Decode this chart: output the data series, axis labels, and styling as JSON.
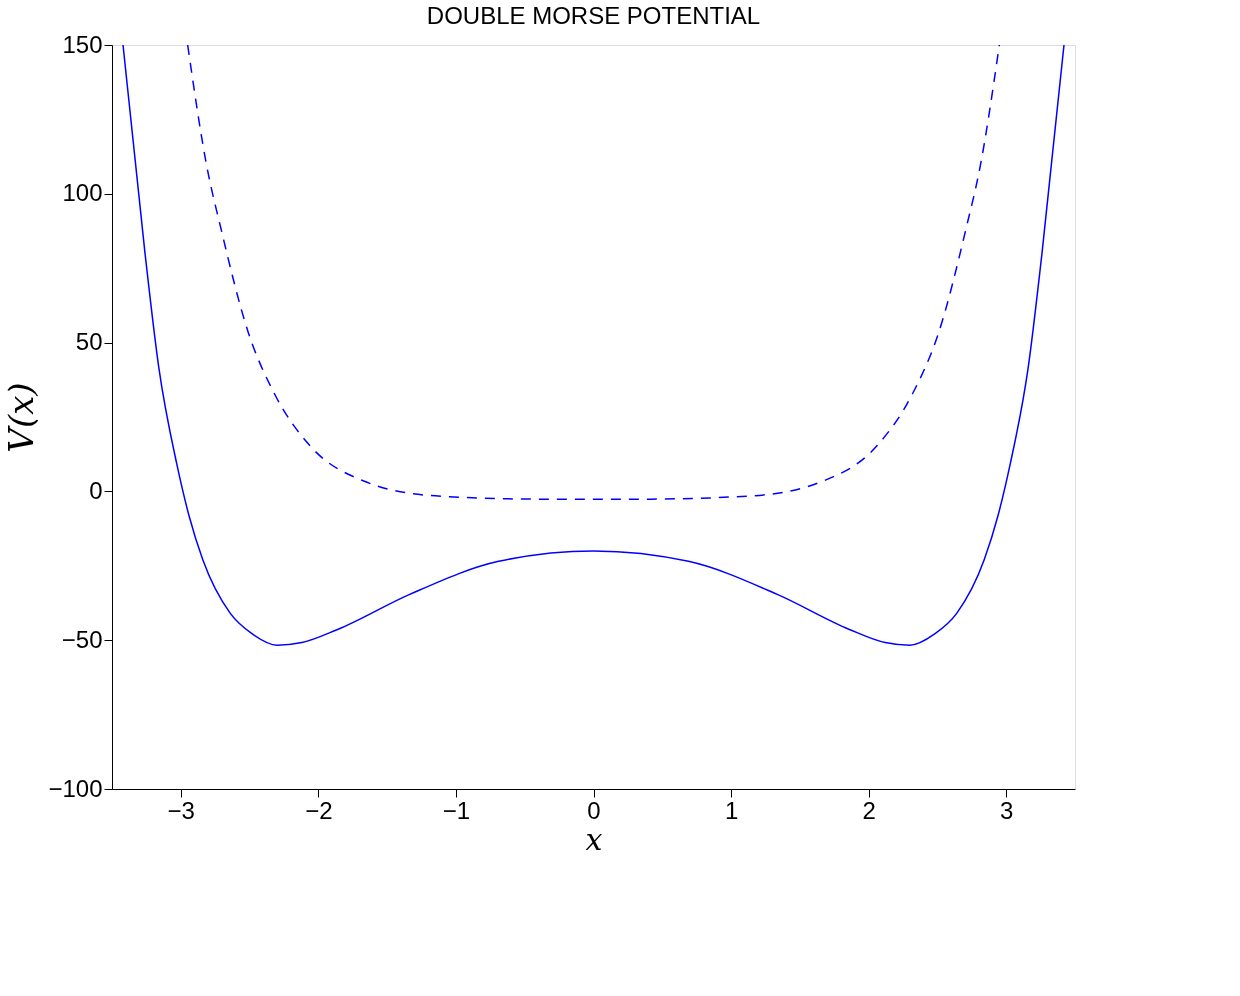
{
  "chart_data": {
    "type": "line",
    "title": "DOUBLE MORSE POTENTIAL",
    "xlabel": "x",
    "ylabel": "V(x)",
    "xlim": [
      -3.5,
      3.5
    ],
    "xticks": [
      -3,
      -2,
      -1,
      0,
      1,
      2,
      3
    ],
    "ylim": [
      -100,
      150
    ],
    "yticks": [
      -100,
      -50,
      0,
      50,
      100,
      150
    ],
    "grid": false,
    "marker": "none",
    "series": [
      {
        "color": "#0000ff",
        "line_style": "solid",
        "x": [
          -3.42,
          -3.26,
          -3.16,
          -3.03,
          -2.94,
          -2.84,
          -2.64,
          -2.48,
          -2.3,
          -2.12,
          -1.86,
          -1.34,
          -0.69,
          0,
          0.69,
          1.34,
          1.86,
          2.12,
          2.3,
          2.48,
          2.64,
          2.84,
          2.94,
          3.03,
          3.16,
          3.26,
          3.42
        ],
        "values": [
          150,
          80,
          41.7,
          9.4,
          -8.2,
          -23,
          -41,
          -47.9,
          -51.7,
          -50.8,
          -46.4,
          -34.7,
          -23.5,
          -20,
          -23.5,
          -34.7,
          -46.4,
          -50.8,
          -51.7,
          -47.9,
          -41,
          -23,
          -8.2,
          9.4,
          41.7,
          80,
          150
        ]
      },
      {
        "color": "#0000ff",
        "line_style": "dashed",
        "x": [
          -2.95,
          -2.81,
          -2.71,
          -2.51,
          -2.32,
          -2.06,
          -1.67,
          -1.15,
          -0.37,
          0,
          0.37,
          1.15,
          1.67,
          2.06,
          2.32,
          2.51,
          2.71,
          2.81,
          2.95
        ],
        "values": [
          150,
          109,
          88.7,
          53.5,
          32.9,
          15.3,
          3.5,
          -1.5,
          -2.6,
          -2.6,
          -2.6,
          -1.5,
          3.5,
          15.3,
          32.9,
          53.5,
          88.7,
          109,
          150
        ]
      }
    ]
  }
}
